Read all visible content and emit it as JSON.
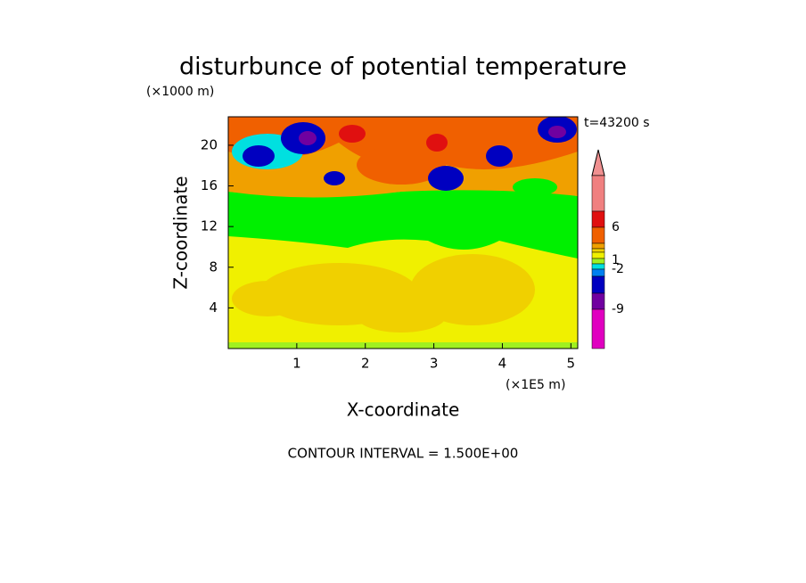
{
  "chart_data": {
    "type": "contourf",
    "title": "disturbunce of potential temperature",
    "y_unit_label": "(×1000 m)",
    "time_label": "t=43200 s",
    "x_label": "X-coordinate",
    "y_label": "Z-coordinate",
    "x_unit_label": "(×1E5 m)",
    "footer": "CONTOUR INTERVAL = 1.500E+00",
    "xlim": [
      0,
      5.1
    ],
    "xticks": [
      1,
      2,
      3,
      4,
      5
    ],
    "ylim": [
      0,
      22.8
    ],
    "yticks": [
      4,
      8,
      12,
      16,
      20
    ],
    "colorbar_colors": [
      "#f09090",
      "#f08080",
      "#e01010",
      "#f06000",
      "#f0a000",
      "#f0d000",
      "#f0f000",
      "#a0f020",
      "#00e0e0",
      "#0080f0",
      "#0000c0",
      "#7000a0",
      "#e000c0"
    ],
    "colorbar_ticks": [
      6,
      1,
      -2,
      -9
    ]
  }
}
